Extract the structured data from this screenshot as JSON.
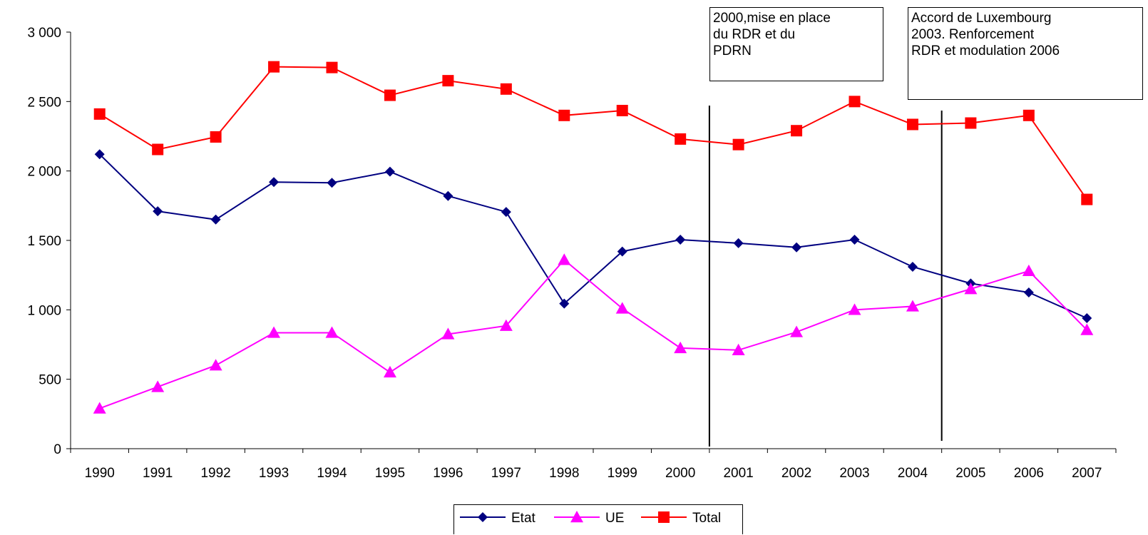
{
  "chart_data": {
    "type": "line",
    "categories": [
      "1990",
      "1991",
      "1992",
      "1993",
      "1994",
      "1995",
      "1996",
      "1997",
      "1998",
      "1999",
      "2000",
      "2001",
      "2002",
      "2003",
      "2004",
      "2005",
      "2006",
      "2007"
    ],
    "ylim": [
      0,
      3000
    ],
    "yticks": [
      0,
      500,
      1000,
      1500,
      2000,
      2500,
      3000
    ],
    "ytick_labels": [
      "0",
      "500",
      "1 000",
      "1 500",
      "2 000",
      "2 500",
      "3 000"
    ],
    "grid": false,
    "legend_position": "bottom-center",
    "series": [
      {
        "name": "Etat",
        "color": "#000080",
        "marker": "diamond",
        "values": [
          2120,
          1710,
          1650,
          1920,
          1915,
          1995,
          1820,
          1705,
          1045,
          1420,
          1505,
          1480,
          1450,
          1505,
          1310,
          1190,
          1125,
          940
        ]
      },
      {
        "name": "UE",
        "color": "#FF00FF",
        "marker": "triangle",
        "values": [
          290,
          445,
          600,
          835,
          835,
          550,
          825,
          885,
          1360,
          1010,
          725,
          710,
          840,
          1000,
          1025,
          1150,
          1280,
          855
        ]
      },
      {
        "name": "Total",
        "color": "#FF0000",
        "marker": "square",
        "values": [
          2410,
          2155,
          2245,
          2750,
          2745,
          2545,
          2650,
          2590,
          2400,
          2435,
          2230,
          2190,
          2290,
          2500,
          2335,
          2345,
          2400,
          1795
        ]
      }
    ],
    "vlines": [
      {
        "between": [
          "2000",
          "2001"
        ]
      },
      {
        "between": [
          "2004",
          "2005"
        ]
      }
    ],
    "annotations": [
      {
        "text": "2000,mise en place\ndu RDR et du\nPDRN"
      },
      {
        "text": "Accord de Luxembourg\n2003. Renforcement\nRDR et modulation 2006"
      }
    ]
  }
}
